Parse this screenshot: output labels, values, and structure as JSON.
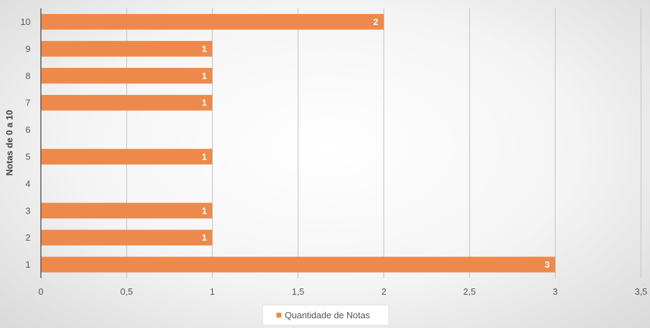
{
  "chart_data": {
    "type": "bar",
    "orientation": "horizontal",
    "categories": [
      "1",
      "2",
      "3",
      "4",
      "5",
      "6",
      "7",
      "8",
      "9",
      "10"
    ],
    "series": [
      {
        "name": "Quantidade de Notas",
        "values": [
          3,
          1,
          1,
          0,
          1,
          0,
          1,
          1,
          1,
          2
        ],
        "color": "#ED8A4B"
      }
    ],
    "data_labels": [
      "3",
      "1",
      "1",
      "",
      "1",
      "",
      "1",
      "1",
      "1",
      "2"
    ],
    "x_ticks": [
      "0",
      "0,5",
      "1",
      "1,5",
      "2",
      "2,5",
      "3",
      "3,5"
    ],
    "x_tick_values": [
      0,
      0.5,
      1,
      1.5,
      2,
      2.5,
      3,
      3.5
    ],
    "xlim": [
      0,
      3.5
    ],
    "ylabel": "Notas de 0 a 10",
    "xlabel": "",
    "title": "",
    "grid": true,
    "legend_position": "bottom"
  }
}
